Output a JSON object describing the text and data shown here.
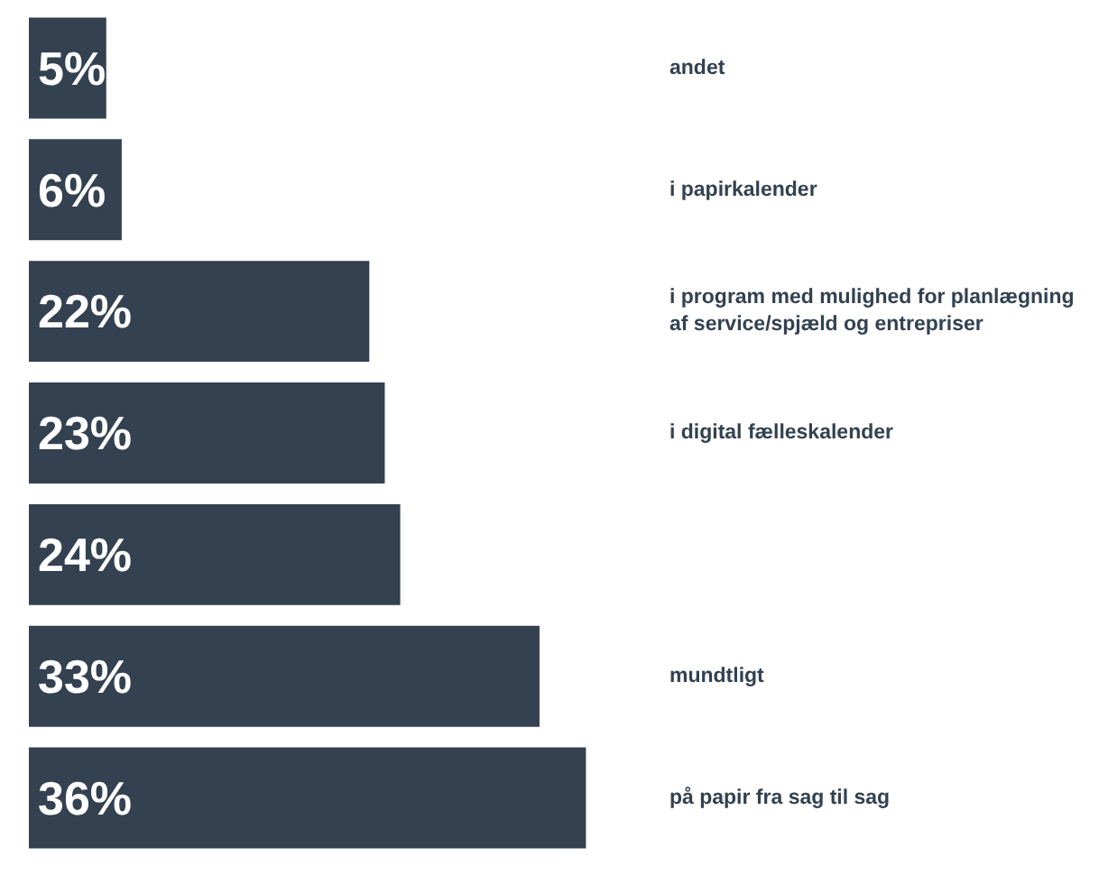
{
  "chart_data": {
    "type": "bar",
    "orientation": "horizontal",
    "categories": [
      "andet",
      "i papirkalender",
      "i program med mulighed for planlægning\naf service/spjæld og entrepriser",
      "i digital fælleskalender",
      null,
      "mundtligt",
      "på papir fra sag til sag"
    ],
    "values": [
      5,
      6,
      22,
      23,
      24,
      33,
      36
    ],
    "value_labels": [
      "5%",
      "6%",
      "22%",
      "23%",
      "24%",
      "33%",
      "36%"
    ],
    "color": "#334150",
    "tick_labels": false,
    "grid": false,
    "legend": false
  }
}
